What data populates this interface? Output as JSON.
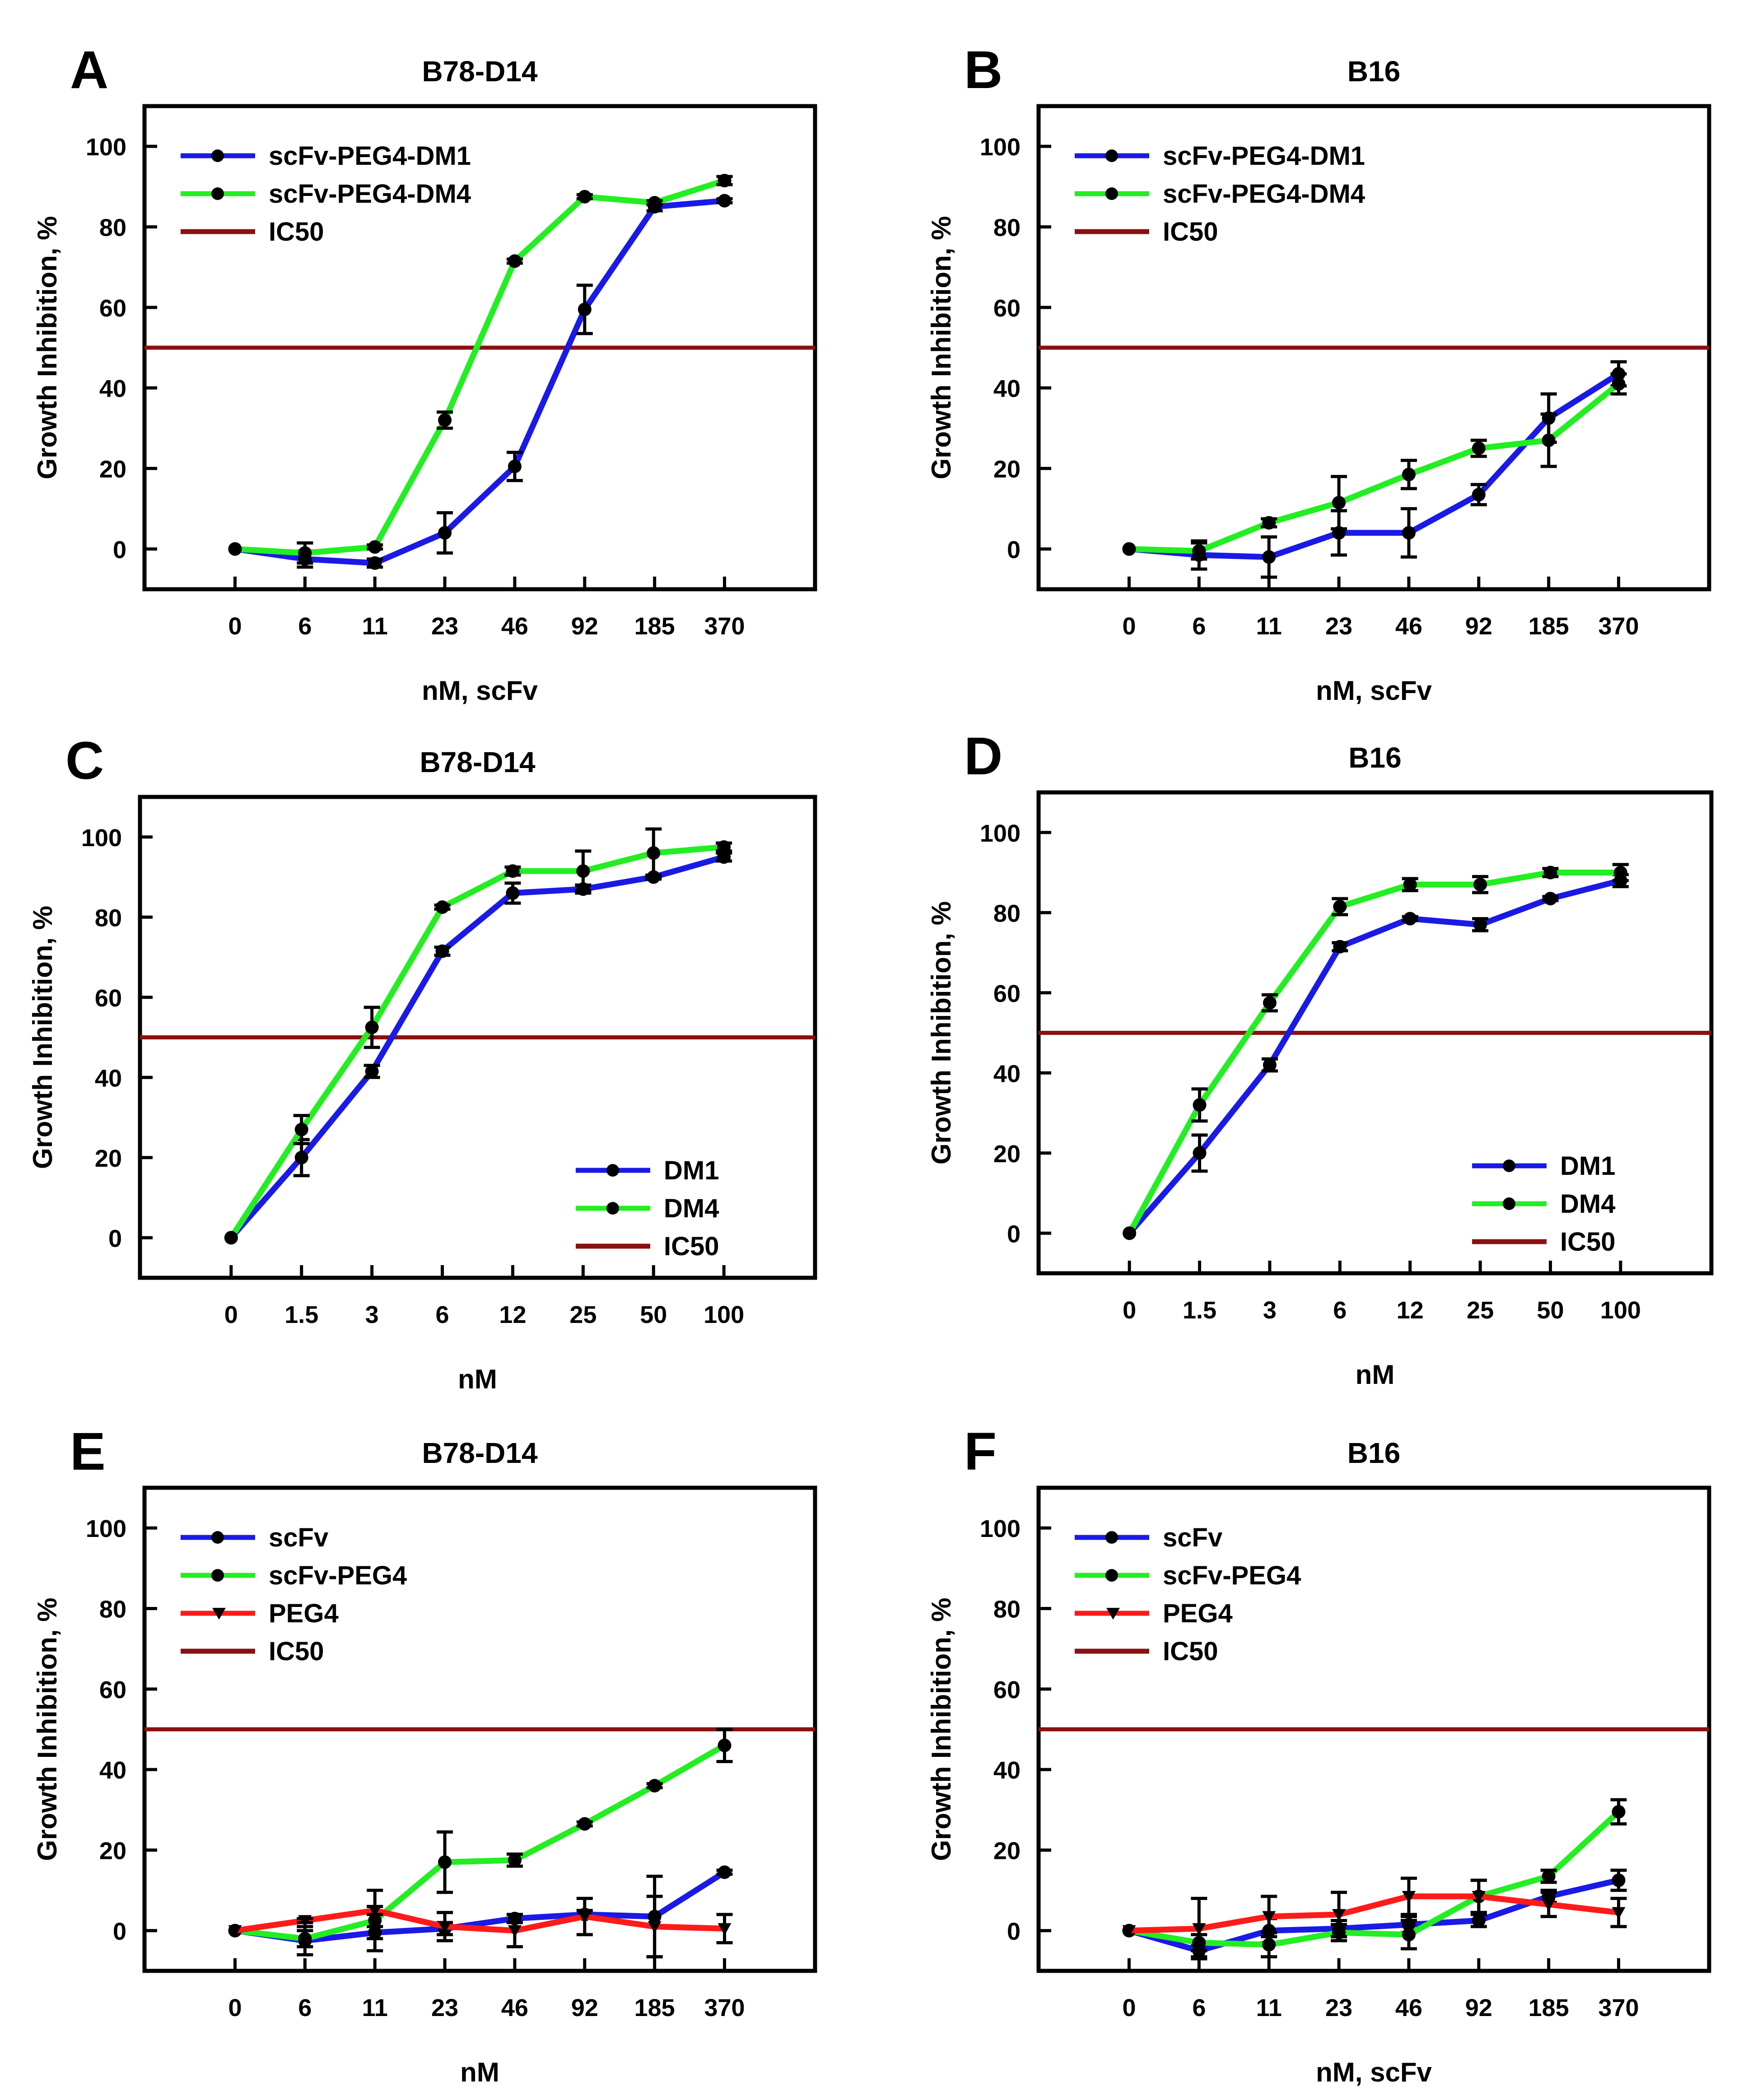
{
  "figure": {
    "colors": {
      "blue": "#1a1ae6",
      "green": "#22ee22",
      "red": "#ff1a1a",
      "ic50": "#8b1010",
      "axis": "#000000"
    }
  },
  "chart_data": [
    {
      "panel": "A",
      "type": "line",
      "title": "B78-D14",
      "xlabel": "nM, scFv",
      "ylabel": "Growth Inhibition, %",
      "categories": [
        "0",
        "6",
        "11",
        "23",
        "46",
        "92",
        "185",
        "370"
      ],
      "ylim": [
        -10,
        110
      ],
      "yticks": [
        0,
        20,
        40,
        60,
        80,
        100
      ],
      "legend_position": "top-left",
      "series": [
        {
          "name": "scFv-PEG4-DM1",
          "color": "#1a1ae6",
          "marker": "circle",
          "values": [
            0,
            -2.5,
            -3.5,
            4,
            20.5,
            59.5,
            85,
            86.5
          ],
          "errors": [
            0,
            2,
            1,
            5,
            3.5,
            6,
            1,
            0.5
          ]
        },
        {
          "name": "scFv-PEG4-DM4",
          "color": "#22ee22",
          "marker": "circle",
          "values": [
            0,
            -1,
            0.5,
            32,
            71.5,
            87.5,
            86,
            91.5
          ],
          "errors": [
            0,
            2.5,
            0.5,
            2,
            0.5,
            0.5,
            0.5,
            1
          ]
        },
        {
          "name": "IC50",
          "color": "#8b1010",
          "hline": 50
        }
      ]
    },
    {
      "panel": "B",
      "type": "line",
      "title": "B16",
      "xlabel": "nM, scFv",
      "ylabel": "Growth Inhibition, %",
      "categories": [
        "0",
        "6",
        "11",
        "23",
        "46",
        "92",
        "185",
        "370"
      ],
      "ylim": [
        -10,
        110
      ],
      "yticks": [
        0,
        20,
        40,
        60,
        80,
        100
      ],
      "legend_position": "top-left",
      "series": [
        {
          "name": "scFv-PEG4-DM1",
          "color": "#1a1ae6",
          "marker": "circle",
          "values": [
            0,
            -1.5,
            -2,
            4,
            4,
            13.5,
            32.5,
            43.5
          ],
          "errors": [
            0,
            3.5,
            5,
            5.5,
            6,
            2.5,
            6,
            3
          ]
        },
        {
          "name": "scFv-PEG4-DM4",
          "color": "#22ee22",
          "marker": "circle",
          "values": [
            0,
            -0.5,
            6.5,
            11.5,
            18.5,
            25,
            27,
            41
          ],
          "errors": [
            0,
            2,
            1,
            6.5,
            3.5,
            2,
            6.5,
            2.5
          ]
        },
        {
          "name": "IC50",
          "color": "#8b1010",
          "hline": 50
        }
      ]
    },
    {
      "panel": "C",
      "type": "line",
      "title": "B78-D14",
      "xlabel": "nM",
      "ylabel": "Growth Inhibition, %",
      "categories": [
        "0",
        "1.5",
        "3",
        "6",
        "12",
        "25",
        "50",
        "100"
      ],
      "ylim": [
        -10,
        110
      ],
      "yticks": [
        0,
        20,
        40,
        60,
        80,
        100
      ],
      "legend_position": "bottom-right",
      "series": [
        {
          "name": "DM1",
          "color": "#1a1ae6",
          "marker": "circle",
          "values": [
            0,
            20,
            41.5,
            71.5,
            86,
            87,
            90,
            95
          ],
          "errors": [
            0,
            4.5,
            1.5,
            1,
            2.5,
            1,
            0.5,
            1
          ]
        },
        {
          "name": "DM4",
          "color": "#22ee22",
          "marker": "circle",
          "values": [
            0,
            27,
            52.5,
            82.5,
            91.5,
            91.5,
            96,
            97.5
          ],
          "errors": [
            0,
            3.5,
            5,
            0.5,
            1,
            5,
            6,
            1
          ]
        },
        {
          "name": "IC50",
          "color": "#8b1010",
          "hline": 50
        }
      ]
    },
    {
      "panel": "D",
      "type": "line",
      "title": "B16",
      "xlabel": "nM",
      "ylabel": "Growth Inhibition, %",
      "categories": [
        "0",
        "1.5",
        "3",
        "6",
        "12",
        "25",
        "50",
        "100"
      ],
      "ylim": [
        -10,
        110
      ],
      "yticks": [
        0,
        20,
        40,
        60,
        80,
        100
      ],
      "legend_position": "bottom-right",
      "series": [
        {
          "name": "DM1",
          "color": "#1a1ae6",
          "marker": "circle",
          "values": [
            0,
            20,
            42,
            71.5,
            78.5,
            77,
            83.5,
            88
          ],
          "errors": [
            0,
            4.5,
            1.5,
            1,
            0.5,
            1.5,
            0.5,
            1.5
          ]
        },
        {
          "name": "DM4",
          "color": "#22ee22",
          "marker": "circle",
          "values": [
            0,
            32,
            57.5,
            81.5,
            87,
            87,
            90,
            90
          ],
          "errors": [
            0,
            4,
            2,
            2,
            1.5,
            2,
            1,
            2
          ]
        },
        {
          "name": "IC50",
          "color": "#8b1010",
          "hline": 50
        }
      ]
    },
    {
      "panel": "E",
      "type": "line",
      "title": "B78-D14",
      "xlabel": "nM",
      "ylabel": "Growth Inhibition, %",
      "categories": [
        "0",
        "6",
        "11",
        "23",
        "46",
        "92",
        "185",
        "370"
      ],
      "ylim": [
        -10,
        110
      ],
      "yticks": [
        0,
        20,
        40,
        60,
        80,
        100
      ],
      "legend_position": "top-left",
      "series": [
        {
          "name": "scFv",
          "color": "#1a1ae6",
          "marker": "circle",
          "values": [
            0,
            -2.5,
            -0.5,
            0.5,
            3,
            4,
            3.5,
            14.5
          ],
          "errors": [
            0,
            3.5,
            1.5,
            1.5,
            1,
            1,
            10,
            0.5
          ]
        },
        {
          "name": "scFv-PEG4",
          "color": "#22ee22",
          "marker": "circle",
          "values": [
            0,
            -2,
            2.5,
            17,
            17.5,
            26.5,
            36,
            46
          ],
          "errors": [
            0,
            2,
            7.5,
            7.5,
            1.5,
            0.5,
            0.5,
            4
          ]
        },
        {
          "name": "PEG4",
          "color": "#ff1a1a",
          "marker": "triangle-down",
          "values": [
            0,
            2.5,
            5,
            1,
            0,
            3.5,
            1,
            0.5
          ],
          "errors": [
            0,
            0.5,
            1,
            3.5,
            4,
            4.5,
            7.5,
            3.5
          ]
        },
        {
          "name": "IC50",
          "color": "#8b1010",
          "hline": 50
        }
      ]
    },
    {
      "panel": "F",
      "type": "line",
      "title": "B16",
      "xlabel": "nM, scFv",
      "ylabel": "Growth Inhibition, %",
      "categories": [
        "0",
        "6",
        "11",
        "23",
        "46",
        "92",
        "185",
        "370"
      ],
      "ylim": [
        -10,
        110
      ],
      "yticks": [
        0,
        20,
        40,
        60,
        80,
        100
      ],
      "legend_position": "top-left",
      "series": [
        {
          "name": "scFv",
          "color": "#1a1ae6",
          "marker": "circle",
          "values": [
            0,
            -5,
            0,
            0.5,
            1.5,
            2.5,
            8.5,
            12.5
          ],
          "errors": [
            0,
            1.5,
            3,
            2,
            2,
            1.5,
            1.5,
            2.5
          ]
        },
        {
          "name": "scFv-PEG4",
          "color": "#22ee22",
          "marker": "circle",
          "values": [
            0,
            -3,
            -3.5,
            -0.5,
            -1,
            8.5,
            13.5,
            29.5
          ],
          "errors": [
            0,
            2,
            3,
            2,
            3.5,
            4,
            1.5,
            3
          ]
        },
        {
          "name": "PEG4",
          "color": "#ff1a1a",
          "marker": "triangle-down",
          "values": [
            0,
            0.5,
            3.5,
            4,
            8.5,
            8.5,
            6.5,
            4.5
          ],
          "errors": [
            0,
            7.5,
            5,
            5.5,
            4.5,
            4,
            3,
            3.5
          ]
        },
        {
          "name": "IC50",
          "color": "#8b1010",
          "hline": 50
        }
      ]
    }
  ]
}
